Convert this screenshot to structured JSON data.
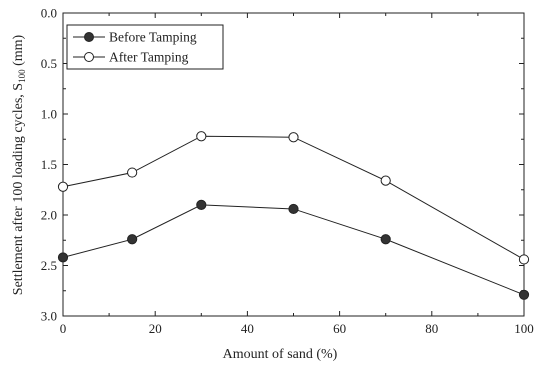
{
  "chart_data": {
    "type": "line",
    "x": [
      0,
      15,
      30,
      50,
      70,
      100
    ],
    "series": [
      {
        "name": "Before Tamping",
        "marker": "filled-circle",
        "values": [
          2.42,
          2.24,
          1.9,
          1.94,
          2.24,
          2.79
        ]
      },
      {
        "name": "After Tamping",
        "marker": "open-circle",
        "values": [
          1.72,
          1.58,
          1.22,
          1.23,
          1.66,
          2.44
        ]
      }
    ],
    "xlabel": "Amount of sand (%)",
    "ylabel": "Settlement after 100 loading cycles, S",
    "ylabel_subscript": "100",
    "ylabel_unit": " (mm)",
    "xlim": [
      0,
      100
    ],
    "ylim": [
      0.0,
      3.0
    ],
    "y_inverted": true,
    "xticks": [
      0,
      20,
      40,
      60,
      80,
      100
    ],
    "xtick_labels": [
      "0",
      "20",
      "40",
      "60",
      "80",
      "100"
    ],
    "yticks": [
      0.0,
      0.5,
      1.0,
      1.5,
      2.0,
      2.5,
      3.0
    ],
    "ytick_labels": [
      "0.0",
      "0.5",
      "1.0",
      "1.5",
      "2.0",
      "2.5",
      "3.0"
    ],
    "grid": false,
    "legend_position": "top-left",
    "colors": {
      "line": "#222222",
      "marker_fill": "#333333",
      "background": "#ffffff"
    }
  }
}
